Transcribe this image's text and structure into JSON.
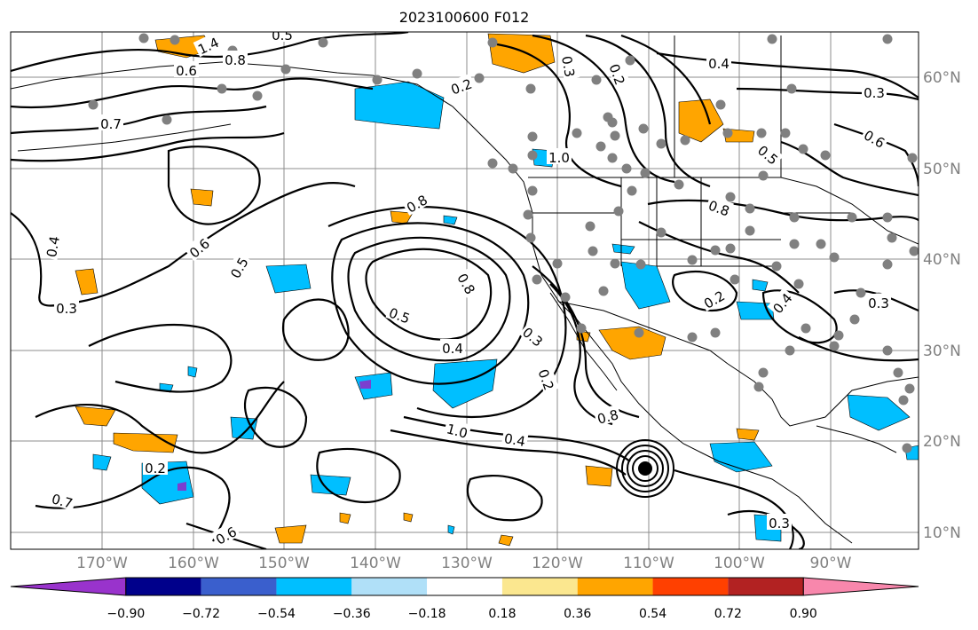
{
  "title": "2023100600 F012",
  "lat_labels": [
    "60°N",
    "50°N",
    "40°N",
    "30°N",
    "20°N",
    "10°N"
  ],
  "lon_labels": [
    "170°W",
    "160°W",
    "150°W",
    "140°W",
    "130°W",
    "120°W",
    "110°W",
    "100°W",
    "90°W"
  ],
  "colorbar": {
    "colors": [
      "#9933cc",
      "#00008b",
      "#3a5fcd",
      "#00bfff",
      "#b0e0f8",
      "#ffffff",
      "#fbe78f",
      "#ffa500",
      "#ff4000",
      "#b22222",
      "#f887ac"
    ],
    "tick_labels": [
      "−0.90",
      "−0.72",
      "−0.54",
      "−0.36",
      "−0.18",
      "0.18",
      "0.36",
      "0.54",
      "0.72",
      "0.90"
    ]
  },
  "contour_labels": [
    "1.4",
    "0.8",
    "0.7",
    "0.6",
    "0.5",
    "0.4",
    "0.3",
    "0.2",
    "1.0",
    "0.8",
    "0.6",
    "0.5",
    "0.4",
    "0.3",
    "0.2",
    "0.7",
    "0.6",
    "0.5",
    "0.4",
    "0.3",
    "0.2",
    "0.8",
    "1.0",
    "0.4",
    "0.5",
    "0.6",
    "0.8",
    "0.2",
    "0.4",
    "0.3",
    "0.2",
    "0.3",
    "0.8",
    "0.3"
  ],
  "fill_colors": {
    "orange": "#ffa500",
    "cyan": "#00bfff",
    "purple": "#7b3fcf"
  }
}
